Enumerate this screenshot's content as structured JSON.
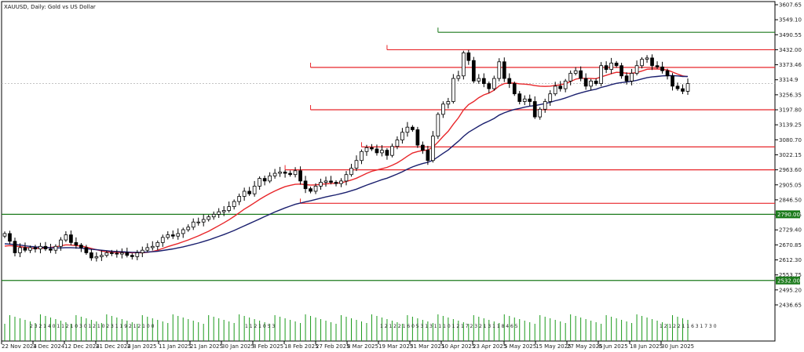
{
  "chart_data": {
    "type": "candlestick",
    "title": "XAUUSD, Daily:  Gold vs US Dollar",
    "price_axis": {
      "ylim": [
        2347.8,
        3607.65
      ],
      "ticks": [
        "3607.65",
        "3549.10",
        "3490.55",
        "3432.00",
        "3373.46",
        "3314.9",
        "3256.35",
        "3197.80",
        "3139.25",
        "3080.70",
        "3022.15",
        "2963.60",
        "2905.05",
        "2846.50",
        "2787.95",
        "2729.40",
        "2670.85",
        "2612.30",
        "2553.75",
        "2495.20",
        "2436.65"
      ],
      "tick_values": [
        3607.65,
        3549.1,
        3490.55,
        3432.0,
        3373.46,
        3314.9,
        3256.35,
        3197.8,
        3139.25,
        3080.7,
        3022.15,
        2963.6,
        2905.05,
        2846.5,
        2787.95,
        2729.4,
        2670.85,
        2612.3,
        2553.75,
        2495.2,
        2436.65
      ],
      "highlight_labels": [
        {
          "text": "2790.00",
          "value": 2790.0,
          "color": "#1b7a1b"
        },
        {
          "text": "2532.00",
          "value": 2532.0,
          "color": "#1b7a1b"
        }
      ]
    },
    "date_axis": {
      "labels": [
        "22 Nov 2024",
        "3 Dec 2024",
        "12 Dec 2024",
        "21 Dec 2024",
        "2 Jan 2025",
        "11 Jan 2025",
        "21 Jan 2025",
        "30 Jan 2025",
        "8 Feb 2025",
        "18 Feb 2025",
        "27 Feb 2025",
        "8 Mar 2025",
        "19 Mar 2025",
        "31 Mar 2025",
        "10 Apr 2025",
        "23 Apr 2025",
        "5 May 2025",
        "15 May 2025",
        "27 May 2025",
        "6 Jun 2025",
        "18 Jun 2025",
        "30 Jun 2025"
      ]
    },
    "close": [
      2715,
      2685,
      2640,
      2660,
      2650,
      2660,
      2655,
      2665,
      2655,
      2650,
      2665,
      2690,
      2710,
      2680,
      2670,
      2660,
      2640,
      2620,
      2625,
      2630,
      2640,
      2638,
      2635,
      2640,
      2630,
      2625,
      2640,
      2650,
      2660,
      2665,
      2680,
      2700,
      2710,
      2705,
      2715,
      2730,
      2740,
      2760,
      2760,
      2770,
      2780,
      2790,
      2800,
      2805,
      2820,
      2840,
      2860,
      2880,
      2870,
      2900,
      2930,
      2920,
      2940,
      2950,
      2955,
      2950,
      2945,
      2960,
      2920,
      2890,
      2880,
      2900,
      2915,
      2920,
      2915,
      2910,
      2920,
      2945,
      2970,
      3000,
      3035,
      3050,
      3045,
      3030,
      3040,
      3020,
      3055,
      3080,
      3110,
      3130,
      3120,
      3060,
      3040,
      3000,
      3095,
      3180,
      3220,
      3230,
      3320,
      3330,
      3420,
      3390,
      3310,
      3320,
      3300,
      3280,
      3320,
      3385,
      3320,
      3300,
      3260,
      3230,
      3240,
      3230,
      3170,
      3200,
      3230,
      3260,
      3290,
      3280,
      3310,
      3340,
      3350,
      3320,
      3290,
      3310,
      3300,
      3370,
      3355,
      3380,
      3370,
      3330,
      3310,
      3340,
      3370,
      3395,
      3400,
      3370,
      3365,
      3350,
      3330,
      3290,
      3280,
      3270,
      3300
    ],
    "ma_fast": {
      "color": "#e8262a",
      "values": [
        2666,
        2668,
        2666,
        2664,
        2661,
        2659,
        2657,
        2658,
        2659,
        2661,
        2663,
        2667,
        2671,
        2670,
        2668,
        2666,
        2662,
        2657,
        2652,
        2647,
        2644,
        2642,
        2641,
        2641,
        2641,
        2640,
        2640,
        2640,
        2642,
        2645,
        2650,
        2657,
        2664,
        2670,
        2676,
        2683,
        2690,
        2698,
        2706,
        2715,
        2724,
        2735,
        2746,
        2757,
        2769,
        2782,
        2796,
        2810,
        2822,
        2835,
        2848,
        2860,
        2871,
        2881,
        2890,
        2898,
        2903,
        2907,
        2908,
        2906,
        2904,
        2905,
        2907,
        2909,
        2910,
        2911,
        2913,
        2918,
        2924,
        2931,
        2940,
        2950,
        2958,
        2963,
        2968,
        2973,
        2981,
        2991,
        3003,
        3017,
        3029,
        3035,
        3039,
        3041,
        3052,
        3072,
        3094,
        3114,
        3141,
        3166,
        3197,
        3218,
        3230,
        3245,
        3256,
        3263,
        3274,
        3291,
        3300,
        3302,
        3302,
        3299,
        3298,
        3296,
        3292,
        3290,
        3289,
        3290,
        3293,
        3295,
        3300,
        3308,
        3317,
        3321,
        3320,
        3320,
        3319,
        3326,
        3332,
        3339,
        3344,
        3343,
        3340,
        3340,
        3343,
        3349,
        3356,
        3357,
        3357,
        3356,
        3353,
        3345,
        3337,
        3330,
        3327
      ]
    },
    "ma_slow": {
      "color": "#1a1f6e",
      "values": [
        2675,
        2674,
        2672,
        2670,
        2667,
        2665,
        2663,
        2662,
        2661,
        2660,
        2659,
        2659,
        2660,
        2660,
        2659,
        2658,
        2656,
        2654,
        2652,
        2650,
        2648,
        2646,
        2645,
        2644,
        2643,
        2642,
        2642,
        2642,
        2643,
        2644,
        2646,
        2649,
        2652,
        2655,
        2659,
        2663,
        2668,
        2673,
        2678,
        2684,
        2690,
        2697,
        2704,
        2711,
        2719,
        2727,
        2736,
        2745,
        2754,
        2763,
        2772,
        2781,
        2790,
        2799,
        2807,
        2815,
        2822,
        2829,
        2834,
        2839,
        2843,
        2848,
        2853,
        2858,
        2862,
        2866,
        2871,
        2876,
        2882,
        2888,
        2896,
        2904,
        2911,
        2918,
        2925,
        2931,
        2939,
        2947,
        2956,
        2966,
        2975,
        2982,
        2988,
        2993,
        3001,
        3014,
        3028,
        3041,
        3058,
        3075,
        3094,
        3110,
        3122,
        3134,
        3145,
        3154,
        3164,
        3177,
        3186,
        3193,
        3199,
        3203,
        3208,
        3212,
        3214,
        3218,
        3222,
        3227,
        3233,
        3238,
        3244,
        3251,
        3258,
        3264,
        3269,
        3274,
        3278,
        3285,
        3290,
        3296,
        3301,
        3304,
        3306,
        3309,
        3313,
        3318,
        3323,
        3326,
        3328,
        3330,
        3331,
        3331,
        3330,
        3328,
        3328
      ]
    },
    "support_resistance_lines": [
      {
        "value": 3500,
        "color": "#1b7a1b"
      },
      {
        "value": 3432,
        "color": "#e8262a"
      },
      {
        "value": 3363,
        "color": "#e8262a"
      },
      {
        "value": 3197.8,
        "color": "#e8262a"
      },
      {
        "value": 3053,
        "color": "#e8262a"
      },
      {
        "value": 2963.6,
        "color": "#e8262a"
      },
      {
        "value": 2833,
        "color": "#e8262a"
      },
      {
        "value": 2790,
        "color": "#1b7a1b"
      },
      {
        "value": 2532,
        "color": "#1b7a1b"
      }
    ],
    "volume_color": "#1b9a1b",
    "volume_labels": [
      "2 3 2 1 4 0 1 1 2 1 0 3 0 1 2 1 0 2 3 1 1 9 2 1 2 1 0 0",
      "1 1 2 1 0 5 3",
      "1 2 1 2 2 1 6 0 5 3 1 3 1 1 1 0 1 2 1 7 2 3 2 1 3 1 1 8 4 6 5",
      "1 2 1 2 2 1 1 6 3 1 7 3 0"
    ]
  }
}
